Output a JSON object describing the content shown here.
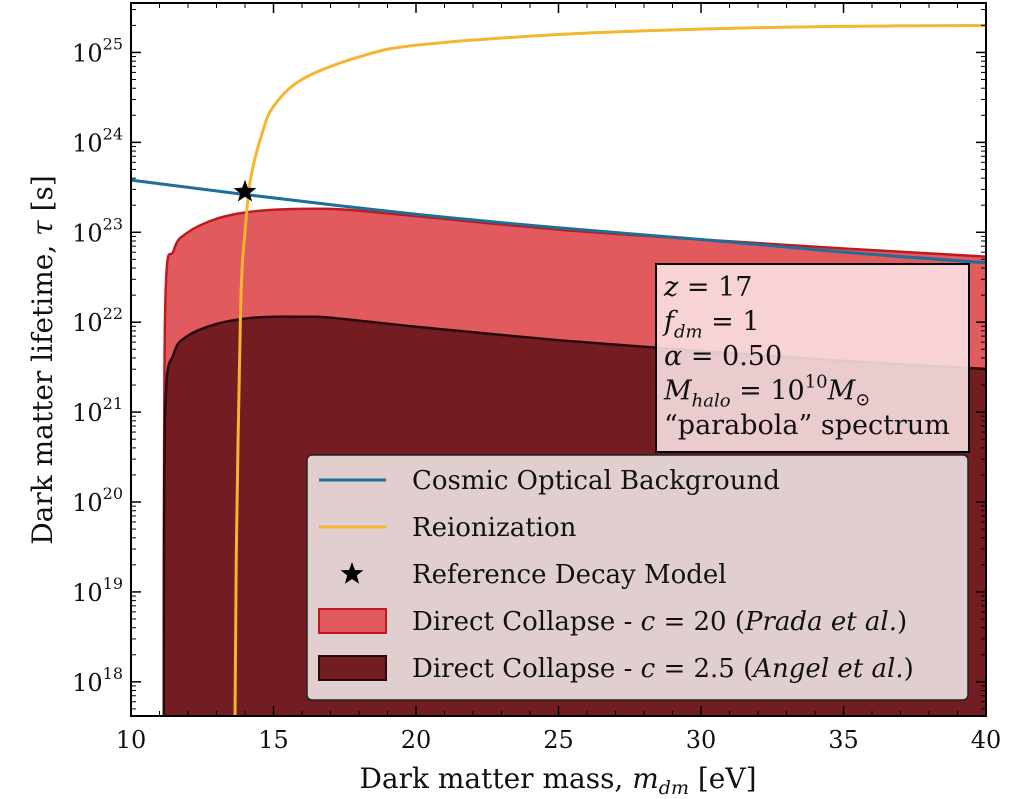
{
  "chart_data": {
    "type": "line",
    "xlabel": "Dark matter mass, m_dm [eV]",
    "xlabel_parts": {
      "pre": "Dark matter mass, ",
      "var": "m",
      "sub": "dm",
      "post": " [eV]"
    },
    "ylabel": "Dark matter lifetime, τ [s]",
    "ylabel_parts": {
      "pre": "Dark matter lifetime, ",
      "var": "τ",
      "post": " [s]"
    },
    "xlim": [
      10,
      40
    ],
    "ylim_log10": [
      17.62,
      25.55
    ],
    "yscale": "log",
    "x_ticks": [
      10,
      15,
      20,
      25,
      30,
      35,
      40
    ],
    "y_ticks": [
      {
        "base": "10",
        "exp": "18",
        "value": 18
      },
      {
        "base": "10",
        "exp": "19",
        "value": 19
      },
      {
        "base": "10",
        "exp": "20",
        "value": 20
      },
      {
        "base": "10",
        "exp": "21",
        "value": 21
      },
      {
        "base": "10",
        "exp": "22",
        "value": 22
      },
      {
        "base": "10",
        "exp": "23",
        "value": 23
      },
      {
        "base": "10",
        "exp": "24",
        "value": 24
      },
      {
        "base": "10",
        "exp": "25",
        "value": 25
      }
    ],
    "series": [
      {
        "name": "Cosmic Optical Background",
        "kind": "line",
        "color": "#1f6e9a",
        "x": [
          10,
          14,
          20,
          25,
          30,
          35,
          40
        ],
        "log10_y": [
          23.58,
          23.42,
          23.2,
          23.05,
          22.92,
          22.78,
          22.66
        ]
      },
      {
        "name": "Reionization",
        "kind": "line",
        "color": "#f5b52e",
        "x": [
          13.65,
          13.7,
          13.85,
          14.0,
          14.2,
          14.6,
          15.0,
          16,
          18,
          20,
          25,
          30,
          35,
          40
        ],
        "log10_y": [
          17.62,
          19.5,
          22.2,
          23.0,
          23.6,
          24.1,
          24.4,
          24.7,
          24.95,
          25.08,
          25.2,
          25.26,
          25.29,
          25.3
        ]
      },
      {
        "name": "Reference Decay Model",
        "kind": "star",
        "color": "#000000",
        "x": [
          14
        ],
        "log10_y": [
          23.45
        ]
      },
      {
        "name": "Direct Collapse - c = 20 (Prada et al.)",
        "kind": "area",
        "color": "#e05a5e",
        "edge": "#c01a1f",
        "x": [
          11.15,
          11.2,
          11.5,
          12,
          13,
          14,
          15,
          16,
          17,
          18,
          20,
          25,
          30,
          35,
          40
        ],
        "log10_y": [
          17.62,
          22.15,
          22.8,
          23.0,
          23.15,
          23.22,
          23.25,
          23.26,
          23.26,
          23.24,
          23.18,
          23.03,
          22.92,
          22.82,
          22.73
        ]
      },
      {
        "name": "Direct Collapse - c = 2.5 (Angel et al.)",
        "kind": "area",
        "color": "#731c21",
        "edge": "#2a0a0c",
        "x": [
          11.15,
          11.2,
          11.5,
          12,
          13,
          14,
          15,
          16,
          17,
          20,
          25,
          30,
          35,
          40
        ],
        "log10_y": [
          17.62,
          21.0,
          21.65,
          21.85,
          21.98,
          22.04,
          22.06,
          22.06,
          22.05,
          21.95,
          21.8,
          21.68,
          21.57,
          21.48
        ]
      }
    ],
    "legend": {
      "placement": "lower-right",
      "entries": [
        {
          "kind": "line",
          "color": "#1f6e9a",
          "label": "Cosmic Optical Background"
        },
        {
          "kind": "line",
          "color": "#f5b52e",
          "label": "Reionization"
        },
        {
          "kind": "star",
          "color": "#000000",
          "label": "Reference Decay Model"
        },
        {
          "kind": "patch",
          "color": "#e05a5e",
          "edge": "#c01a1f",
          "label_pre": "Direct Collapse - ",
          "label_var": "c",
          "label_mid": " = 20 (",
          "label_it": "Prada et al.",
          "label_post": ")"
        },
        {
          "kind": "patch",
          "color": "#731c21",
          "edge": "#2a0a0c",
          "label_pre": "Direct Collapse - ",
          "label_var": "c",
          "label_mid": " = 2.5 (",
          "label_it": "Angel et al.",
          "label_post": ")"
        }
      ]
    },
    "annotation_box": {
      "placement": "right",
      "lines": [
        {
          "var": "z",
          "sub": "",
          "rest": " = 17"
        },
        {
          "var": "f",
          "sub": "dm",
          "rest": " = 1"
        },
        {
          "var": "α",
          "sub": "",
          "rest": " = 0.50"
        },
        {
          "var": "M",
          "sub": "halo",
          "rest": " = 10",
          "sup": "10",
          "var2": "M",
          "sub2": "⊙"
        },
        {
          "text": "“parabola” spectrum"
        }
      ]
    }
  }
}
